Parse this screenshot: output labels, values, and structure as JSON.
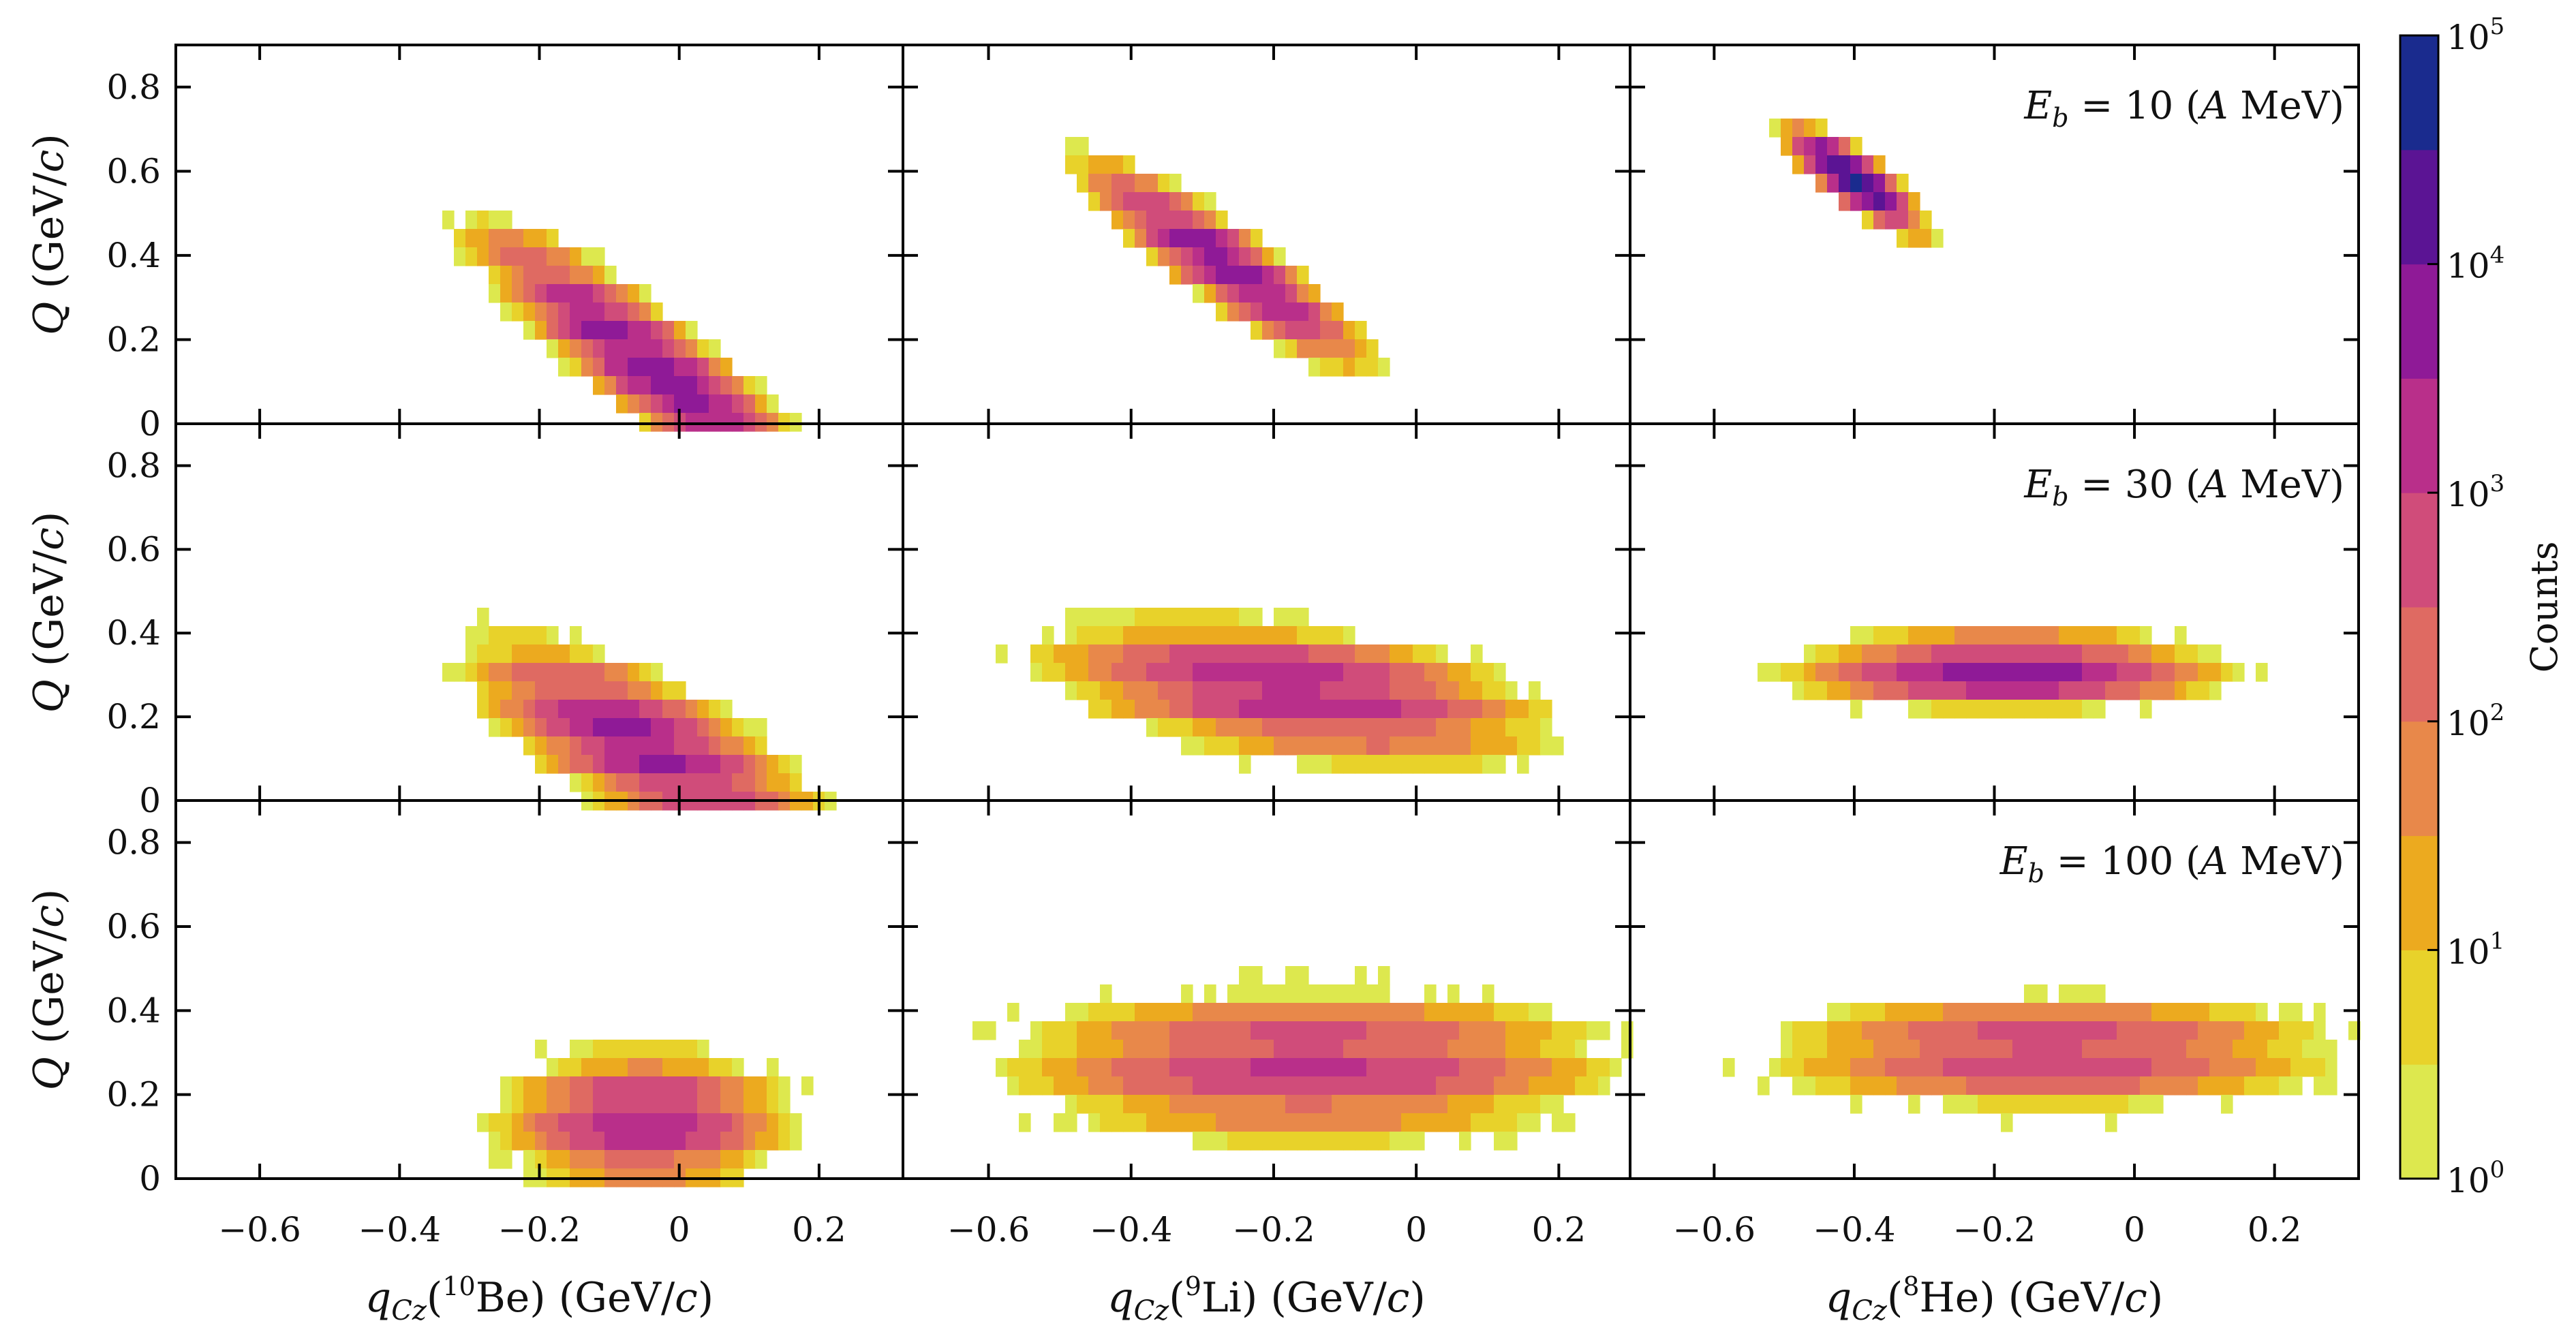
{
  "chart_data": {
    "type": "heatmap",
    "y_axis": {
      "title": "Q (GeV/c)",
      "ylim": [
        0,
        0.9
      ],
      "ticks": [
        "0",
        "0.2",
        "0.4",
        "0.6",
        "0.8"
      ]
    },
    "x_axis_ticks": [
      "−0.6",
      "−0.4",
      "−0.2",
      "0",
      "0.2"
    ],
    "columns": [
      {
        "xlabel": "qCz(10Be) (GeV/c)",
        "prefix": "q",
        "sub": "Cz",
        "isotope_mass": "10",
        "isotope": "Be",
        "unit": " (GeV/",
        "unit_c": "c",
        "unit_close": ")",
        "xlim": [
          -0.72,
          0.32
        ]
      },
      {
        "xlabel": "qCz(9Li) (GeV/c)",
        "prefix": "q",
        "sub": "Cz",
        "isotope_mass": "9",
        "isotope": "Li",
        "unit": " (GeV/",
        "unit_c": "c",
        "unit_close": ")",
        "xlim": [
          -0.72,
          0.3
        ]
      },
      {
        "xlabel": "qCz(8He) (GeV/c)",
        "prefix": "q",
        "sub": "Cz",
        "isotope_mass": "8",
        "isotope": "He",
        "unit": " (GeV/",
        "unit_c": "c",
        "unit_close": ")",
        "xlim": [
          -0.72,
          0.32
        ]
      }
    ],
    "rows": [
      {
        "label": "E_b = 10 (A MeV)",
        "eb": "10"
      },
      {
        "label": "E_b = 30 (A MeV)",
        "eb": "30"
      },
      {
        "label": "E_b = 100 (A MeV)",
        "eb": "100"
      }
    ],
    "energy_label_parts": {
      "E": "E",
      "b": "b",
      "eq": " = ",
      "open": " (",
      "A": "A",
      "mev": " MeV)"
    },
    "colorbar": {
      "title": "Counts",
      "scale": "log",
      "range": [
        1,
        100000
      ],
      "tick_base": "10",
      "tick_exponents": [
        "0",
        "1",
        "2",
        "3",
        "4",
        "5"
      ],
      "colors": [
        "#dde84e",
        "#e8d22a",
        "#ecaa1f",
        "#e8884a",
        "#df6a62",
        "#d04c7a",
        "#b92f8a",
        "#8f1a97",
        "#5b1494",
        "#1a2b8e"
      ]
    },
    "blobs": [
      {
        "row": 0,
        "col": 0,
        "x0": -0.05,
        "y0": 0.15,
        "slope": -1.2,
        "sx": 0.14,
        "sy": 0.08,
        "peak": 3.9,
        "stripe": 0.1
      },
      {
        "row": 0,
        "col": 1,
        "x0": -0.27,
        "y0": 0.38,
        "slope": -1.1,
        "sx": 0.11,
        "sy": 0.06,
        "peak": 4.0,
        "stripe": 0.1
      },
      {
        "row": 0,
        "col": 2,
        "x0": -0.4,
        "y0": 0.58,
        "slope": -1.1,
        "sx": 0.055,
        "sy": 0.04,
        "peak": 4.6,
        "stripe": 0.1
      },
      {
        "row": 1,
        "col": 0,
        "x0": -0.05,
        "y0": 0.13,
        "slope": -0.75,
        "sx": 0.14,
        "sy": 0.1,
        "peak": 3.7,
        "stripe": 0.11
      },
      {
        "row": 1,
        "col": 1,
        "x0": -0.17,
        "y0": 0.26,
        "slope": -0.22,
        "sx": 0.2,
        "sy": 0.09,
        "peak": 3.5,
        "stripe": 0.12
      },
      {
        "row": 1,
        "col": 2,
        "x0": -0.18,
        "y0": 0.31,
        "slope": 0.0,
        "sx": 0.17,
        "sy": 0.055,
        "peak": 3.8,
        "stripe": 0.12
      },
      {
        "row": 2,
        "col": 0,
        "x0": -0.05,
        "y0": 0.14,
        "slope": 0.0,
        "sx": 0.12,
        "sy": 0.1,
        "peak": 3.4,
        "stripe": 0.11
      },
      {
        "row": 2,
        "col": 1,
        "x0": -0.15,
        "y0": 0.27,
        "slope": 0.0,
        "sx": 0.25,
        "sy": 0.11,
        "peak": 3.1,
        "stripe": 0.13
      },
      {
        "row": 2,
        "col": 2,
        "x0": -0.12,
        "y0": 0.3,
        "slope": 0.0,
        "sx": 0.24,
        "sy": 0.085,
        "peak": 3.0,
        "stripe": 0.13
      }
    ]
  }
}
